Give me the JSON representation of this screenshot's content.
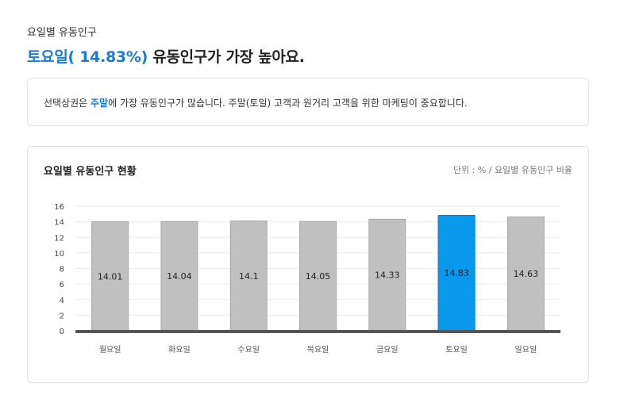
{
  "header": {
    "section_label": "요일별 유동인구",
    "headline_highlight": "토요일( 14.83%)",
    "headline_rest": " 유동인구가 가장 높아요."
  },
  "summary": {
    "pre": "선택상권은 ",
    "highlight": "주말",
    "post": "에 가장 유동인구가 많습니다. 주말(토일) 고객과 원거리 고객을 위한 마케팅이 중요합니다."
  },
  "chart_card": {
    "title": "요일별 유동인구 현황",
    "unit": "단위 : % / 요일별 유동인구 비율"
  },
  "chart_data": {
    "type": "bar",
    "categories": [
      "월요일",
      "화요일",
      "수요일",
      "목요일",
      "금요일",
      "토요일",
      "일요일"
    ],
    "values": [
      14.01,
      14.04,
      14.1,
      14.05,
      14.33,
      14.83,
      14.63
    ],
    "value_labels": [
      "14.01",
      "14.04",
      "14.1",
      "14.05",
      "14.33",
      "14.83",
      "14.63"
    ],
    "highlight_index": 5,
    "ylim": [
      0,
      16
    ],
    "yticks": [
      "0",
      "2",
      "4",
      "6",
      "8",
      "10",
      "12",
      "14",
      "16"
    ],
    "grid": true,
    "colors": {
      "bar": "#c0c0c0",
      "bar_border": "#a8a8a8",
      "highlight": "#0a98ec",
      "highlight_border": "#0a7bc4",
      "baseline": "#555555",
      "grid": "#ececec"
    }
  }
}
